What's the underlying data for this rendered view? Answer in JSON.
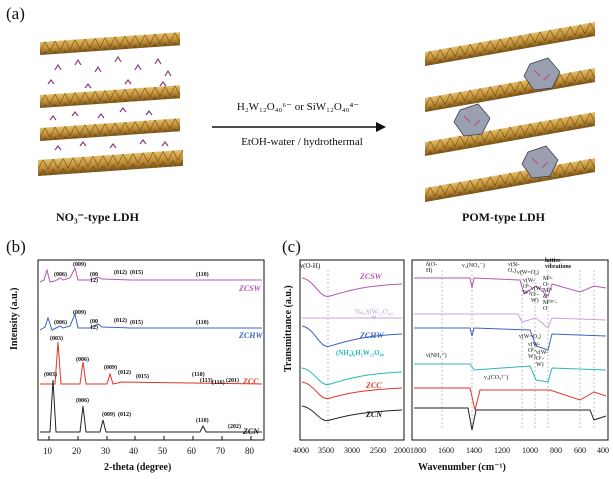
{
  "panel_a": {
    "label": "(a)",
    "arrow_top_text": "H₂W₁₂O₄₀⁶⁻ or SiW₁₂O₄₀⁴⁻",
    "arrow_bottom_text": "EtOH-water / hydrothermal",
    "left_caption": "NO₃⁻-type LDH",
    "right_caption": "POM-type LDH"
  },
  "panel_b": {
    "label": "(b)",
    "xlabel": "2-theta (degree)",
    "ylabel": "Intensity (a.u.)",
    "xticks": [
      "10",
      "20",
      "30",
      "40",
      "50",
      "60",
      "70",
      "80"
    ],
    "series": [
      {
        "name": "ZCSW",
        "color": "#b05bb5",
        "peaks": [
          "(003)",
          "(006)",
          "(009)",
          "(00 12)",
          "(012)",
          "(015)",
          "(110)"
        ]
      },
      {
        "name": "ZCHW",
        "color": "#3b63c4",
        "peaks": [
          "(003)",
          "(006)",
          "(009)",
          "(00 12)",
          "(012)",
          "(015)",
          "(110)"
        ]
      },
      {
        "name": "ZCC",
        "color": "#e0362c",
        "peaks": [
          "(003)",
          "(006)",
          "(009)",
          "(012)",
          "(015)",
          "(110)",
          "(113)",
          "(116)",
          "(201)"
        ]
      },
      {
        "name": "ZCN",
        "color": "#222222",
        "peaks": [
          "(003)",
          "(006)",
          "(009)",
          "(012)",
          "(110)",
          "(202)"
        ]
      }
    ]
  },
  "panel_c": {
    "label": "(c)",
    "xlabel": "Wavenumber (cm⁻¹)",
    "ylabel": "Transmittance (a.u.)",
    "left_xticks": [
      "4000",
      "3500",
      "3000",
      "2500",
      "2000"
    ],
    "right_xticks": [
      "1800",
      "1600",
      "1400",
      "1200",
      "1000",
      "800",
      "600",
      "400"
    ],
    "left_annotations": [
      "ν(O-H)"
    ],
    "right_annotations": [
      "δ(O-H)",
      "ν₃(NO₃⁻)",
      "ν(Si-Oₐ)",
      "lattice vibrations",
      "ν(W=Oₐ)",
      "Mᴵᴵ-O-Mᴵᴵᴵ & Mᴵᴵᴵᴵ’-O",
      "ν(W-Oᵇ-W)",
      "ν(W-Oᶜ-W)",
      "ν(W=Oₐ)",
      "ν(W-Oᵇ-W)",
      "ν(W-Oᶜ-W)",
      "ν(NH₄⁺)",
      "ν₃(CO₃²⁻)"
    ],
    "series": [
      {
        "name": "ZCSW",
        "color": "#b05bb5"
      },
      {
        "name": "Na₄SiW₁₂O₄₀",
        "color": "#c9a3d8"
      },
      {
        "name": "ZCHW",
        "color": "#3b63c4"
      },
      {
        "name": "(NH₄)₆H₂W₁₂O₄₀",
        "color": "#2bb9b4"
      },
      {
        "name": "ZCC",
        "color": "#e0362c"
      },
      {
        "name": "ZCN",
        "color": "#222222"
      }
    ]
  }
}
